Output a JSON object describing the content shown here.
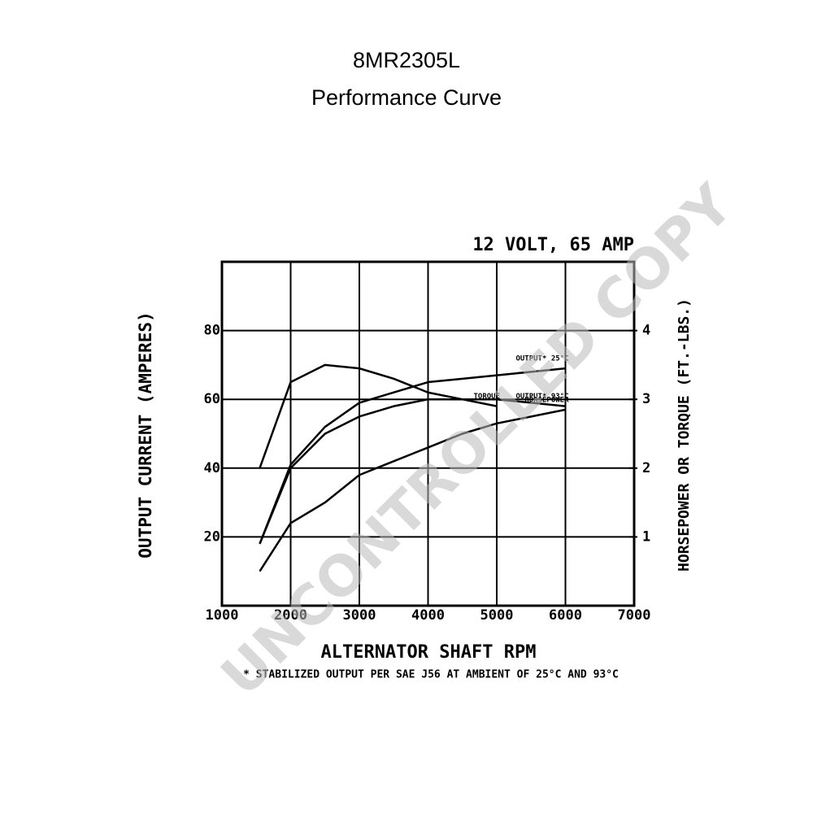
{
  "chart_data": {
    "type": "line",
    "title": "8MR2305L",
    "subtitle": "Performance Curve",
    "annotation": "12 VOLT, 65 AMP",
    "xlabel": "ALTERNATOR SHAFT RPM",
    "ylabel": "OUTPUT CURRENT (AMPERES)",
    "y2label": "HORSEPOWER OR TORQUE (FT.-LBS.)",
    "footnote": "* STABILIZED OUTPUT PER SAE J56 AT AMBIENT OF 25°C AND 93°C",
    "watermark": "UNCONTROLLED COPY",
    "x": [
      1550,
      2000,
      2500,
      3000,
      3500,
      4000,
      4500,
      5000,
      5500,
      6000
    ],
    "xlim": [
      1000,
      7000
    ],
    "xticks": [
      1000,
      2000,
      3000,
      4000,
      5000,
      6000,
      7000
    ],
    "ylim": [
      0,
      100
    ],
    "yticks": [
      20,
      40,
      60,
      80
    ],
    "y2lim": [
      0,
      5
    ],
    "y2ticks": [
      1,
      2,
      3,
      4
    ],
    "grid": true,
    "series": [
      {
        "name": "TORQUE",
        "color": "#000000",
        "axis": "y2",
        "values": [
          2.0,
          3.25,
          3.5,
          3.45,
          3.3,
          3.1,
          3.0,
          2.9,
          null,
          null
        ]
      },
      {
        "name": "OUTPUT* 25°C",
        "color": "#000000",
        "values": [
          18,
          41,
          52,
          59,
          62,
          65,
          66,
          67,
          68,
          69
        ]
      },
      {
        "name": "OUTPUT* 93°C",
        "color": "#000000",
        "values": [
          18,
          40,
          50,
          55,
          58,
          60,
          60,
          60,
          59,
          58
        ]
      },
      {
        "name": "HORSEPOWER",
        "color": "#000000",
        "axis": "y2",
        "values": [
          0.5,
          1.2,
          1.5,
          1.9,
          2.1,
          2.3,
          2.5,
          2.65,
          2.75,
          2.85
        ]
      }
    ]
  }
}
